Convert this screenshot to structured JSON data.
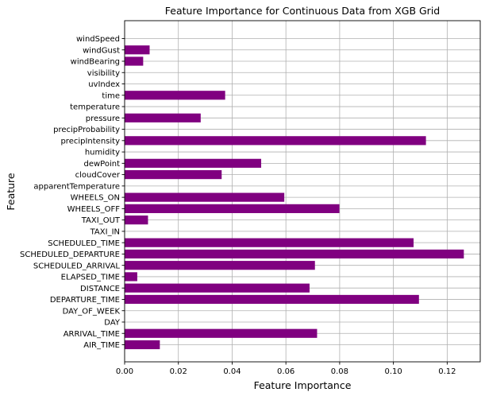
{
  "chart_data": {
    "type": "bar",
    "orientation": "horizontal",
    "title": "Feature Importance for Continuous Data from XGB Grid",
    "xlabel": "Feature Importance",
    "ylabel": "Feature",
    "xlim": [
      0.0,
      0.1323
    ],
    "xticks": [
      "0.00",
      "0.02",
      "0.04",
      "0.06",
      "0.08",
      "0.10",
      "0.12"
    ],
    "xtick_values": [
      0,
      0.02,
      0.04,
      0.06,
      0.08,
      0.1,
      0.12
    ],
    "grid": true,
    "bar_color": "#800080",
    "categories": [
      "AIR_TIME",
      "ARRIVAL_TIME",
      "DAY",
      "DAY_OF_WEEK",
      "DEPARTURE_TIME",
      "DISTANCE",
      "ELAPSED_TIME",
      "SCHEDULED_ARRIVAL",
      "SCHEDULED_DEPARTURE",
      "SCHEDULED_TIME",
      "TAXI_IN",
      "TAXI_OUT",
      "WHEELS_OFF",
      "WHEELS_ON",
      "apparentTemperature",
      "cloudCover",
      "dewPoint",
      "humidity",
      "precipIntensity",
      "precipProbability",
      "pressure",
      "temperature",
      "time",
      "uvIndex",
      "visibility",
      "windBearing",
      "windGust",
      "windSpeed"
    ],
    "values": [
      0.0131,
      0.0716,
      0.0,
      0.0,
      0.1095,
      0.0688,
      0.0047,
      0.0708,
      0.1262,
      0.1075,
      0.0,
      0.0087,
      0.0799,
      0.0594,
      0.0,
      0.0361,
      0.0508,
      0.0,
      0.1121,
      0.0,
      0.0283,
      0.0,
      0.0374,
      0.0,
      0.0,
      0.0069,
      0.0093,
      0.0
    ]
  }
}
